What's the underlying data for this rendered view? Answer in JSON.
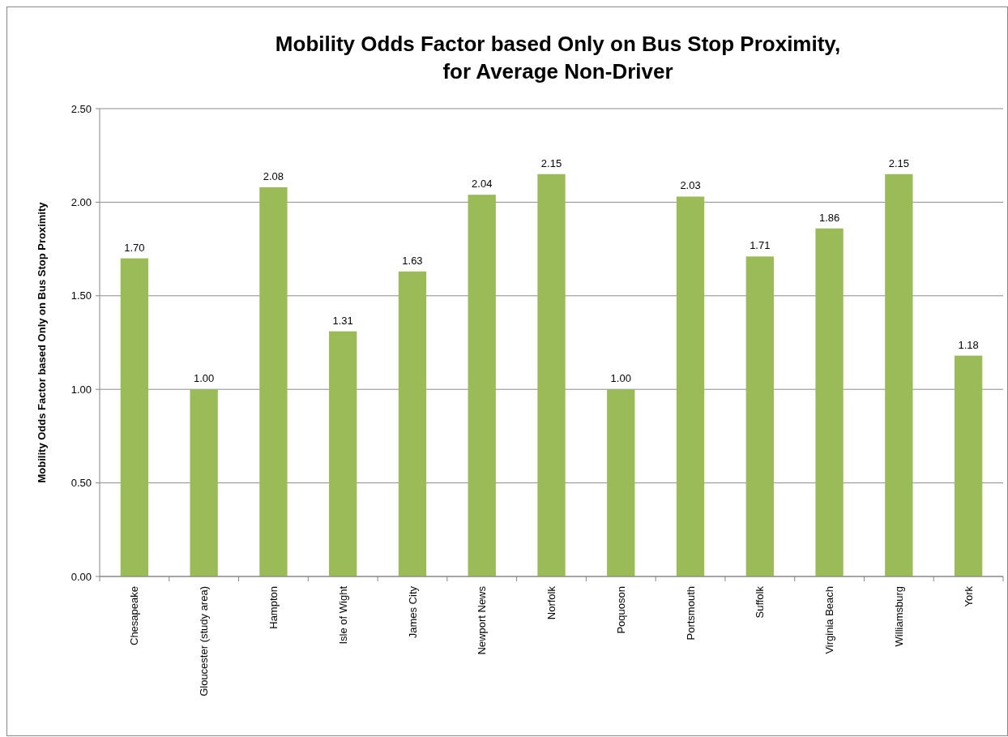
{
  "chart_data": {
    "type": "bar",
    "title": "Mobility Odds Factor based Only on Bus Stop Proximity,\nfor Average Non-Driver",
    "ylabel": "Mobility Odds Factor  based Only on Bus Stop Proximity",
    "categories": [
      "Chesapeake",
      "Gloucester (study area)",
      "Hampton",
      "Isle of Wight",
      "James City",
      "Newport News",
      "Norfolk",
      "Poquoson",
      "Portsmouth",
      "Suffolk",
      "Virginia Beach",
      "Williamsburg",
      "York"
    ],
    "values": [
      1.7,
      1.0,
      2.08,
      1.31,
      1.63,
      2.04,
      2.15,
      1.0,
      2.03,
      1.71,
      1.86,
      2.15,
      1.18
    ],
    "value_labels": [
      "1.70",
      "1.00",
      "2.08",
      "1.31",
      "1.63",
      "2.04",
      "2.15",
      "1.00",
      "2.03",
      "1.71",
      "1.86",
      "2.15",
      "1.18"
    ],
    "color": "#9bbb59",
    "ylim": [
      0,
      2.5
    ],
    "yticks": [
      {
        "value": 0,
        "label": "0.00"
      },
      {
        "value": 0.5,
        "label": "0.50"
      },
      {
        "value": 1,
        "label": "1.00"
      },
      {
        "value": 1.5,
        "label": "1.50"
      },
      {
        "value": 2,
        "label": "2.00"
      },
      {
        "value": 2.5,
        "label": "2.50"
      }
    ],
    "grid": "y"
  }
}
